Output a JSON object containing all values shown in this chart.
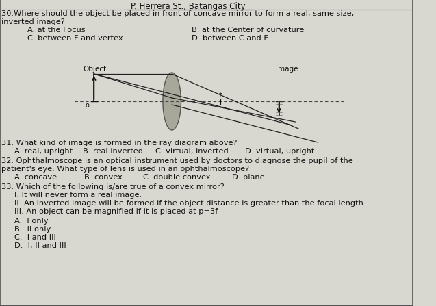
{
  "background_color": "#d8d8d0",
  "text_color": "#111111",
  "header_underline": "P. Herrera St., Batangas City",
  "q30_line1": "30.Where should the object be placed in front of concave mirror to form a real, same size,",
  "q30_line2": "inverted image?",
  "q30_A": "A. at the Focus",
  "q30_B": "B. at the Center of curvature",
  "q30_C": "C. between F and vertex",
  "q30_D": "D. between C and F",
  "obj_label": "Object",
  "img_label": "Image",
  "f_label": "f",
  "o_label": "o",
  "q31": "31. What kind of image is formed in the ray diagram above?",
  "q31_A": "A. real, upright",
  "q31_B": "B. real inverted",
  "q31_C": "C. virtual, inverted",
  "q31_D": "D. virtual, upright",
  "q32_line1": "32. Ophthalmoscope is an optical instrument used by doctors to diagnose the pupil of the",
  "q32_line2": "patient's eye. What type of lens is used in an ophthalmoscope?",
  "q32_A": "A. concave",
  "q32_B": "B. convex",
  "q32_C": "C. double convex",
  "q32_D": "D. plane",
  "q33": "33. Which of the following is/are true of a convex mirror?",
  "q33_I": "I. It will never form a real image.",
  "q33_II": "II. An inverted image will be formed if the object distance is greater than the focal length",
  "q33_III": "III. An object can be magnified if it is placed at p=3f",
  "q33_A": "A.  I only",
  "q33_B": "B.  II only",
  "q33_C": "C.  I and III",
  "q33_D": "D.  I, II and III"
}
